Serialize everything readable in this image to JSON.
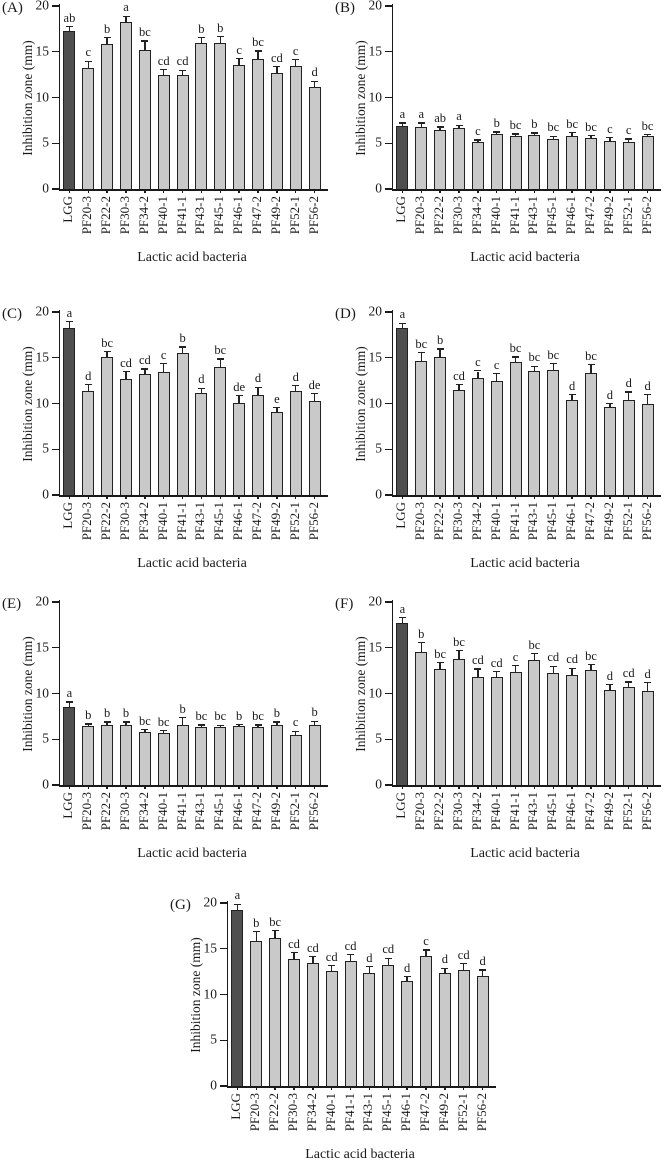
{
  "figure": {
    "y_ticks": [
      0,
      5,
      10,
      15,
      20
    ],
    "colors": {
      "control_bar": "#4f4f4f",
      "bar": "#c9c9c9",
      "bar_border": "#222222",
      "axis": "#1a1a1a",
      "text": "#1a1a1a",
      "background": "#ffffff"
    }
  },
  "chart_data": [
    {
      "panel": "(A)",
      "type": "bar",
      "ylabel": "Inhibition zone (mm)",
      "xlabel": "Lactic acid bacteria",
      "ylim": [
        0,
        20
      ],
      "categories": [
        "LGG",
        "PF20-3",
        "PF22-2",
        "PF30-3",
        "PF34-2",
        "PF40-1",
        "PF41-1",
        "PF43-1",
        "PF45-1",
        "PF46-1",
        "PF47-2",
        "PF49-2",
        "PF52-1",
        "PF56-2"
      ],
      "values": [
        17.3,
        13.2,
        15.8,
        18.3,
        15.2,
        12.5,
        12.5,
        16.0,
        16.0,
        13.6,
        14.2,
        12.7,
        13.4,
        11.2
      ],
      "errors": [
        0.4,
        0.7,
        0.7,
        0.5,
        0.9,
        0.5,
        0.4,
        0.5,
        0.6,
        0.6,
        0.8,
        0.6,
        0.7,
        0.5
      ],
      "sig_letters": [
        "ab",
        "c",
        "b",
        "a",
        "bc",
        "cd",
        "cd",
        "b",
        "b",
        "c",
        "bc",
        "cd",
        "c",
        "d"
      ]
    },
    {
      "panel": "(B)",
      "type": "bar",
      "ylabel": "Inhibition zone (mm)",
      "xlabel": "Lactic acid bacteria",
      "ylim": [
        0,
        20
      ],
      "categories": [
        "LGG",
        "PF20-3",
        "PF22-2",
        "PF30-3",
        "PF34-2",
        "PF40-1",
        "PF41-1",
        "PF43-1",
        "PF45-1",
        "PF46-1",
        "PF47-2",
        "PF49-2",
        "PF52-1",
        "PF56-2"
      ],
      "values": [
        6.9,
        6.8,
        6.5,
        6.7,
        5.1,
        6.0,
        5.8,
        5.9,
        5.5,
        5.8,
        5.6,
        5.2,
        5.1,
        5.8
      ],
      "errors": [
        0.25,
        0.35,
        0.2,
        0.2,
        0.2,
        0.15,
        0.15,
        0.15,
        0.2,
        0.3,
        0.15,
        0.35,
        0.3,
        0.1
      ],
      "sig_letters": [
        "a",
        "a",
        "ab",
        "a",
        "c",
        "b",
        "bc",
        "b",
        "bc",
        "bc",
        "bc",
        "c",
        "c",
        "bc"
      ]
    },
    {
      "panel": "(C)",
      "type": "bar",
      "ylabel": "Inhibition zone (mm)",
      "xlabel": "Lactic acid bacteria",
      "ylim": [
        0,
        20
      ],
      "categories": [
        "LGG",
        "PF20-3",
        "PF22-2",
        "PF30-3",
        "PF34-2",
        "PF40-1",
        "PF41-1",
        "PF43-1",
        "PF45-1",
        "PF46-1",
        "PF47-2",
        "PF49-2",
        "PF52-1",
        "PF56-2"
      ],
      "values": [
        18.3,
        11.4,
        15.1,
        12.7,
        13.2,
        13.4,
        15.5,
        11.1,
        14.0,
        10.1,
        10.9,
        9.1,
        11.4,
        10.3
      ],
      "errors": [
        0.6,
        0.6,
        0.5,
        0.7,
        0.5,
        0.9,
        0.6,
        0.5,
        0.8,
        0.7,
        0.8,
        0.4,
        0.5,
        0.7
      ],
      "sig_letters": [
        "a",
        "d",
        "bc",
        "cd",
        "cd",
        "c",
        "b",
        "d",
        "bc",
        "de",
        "d",
        "e",
        "d",
        "de"
      ]
    },
    {
      "panel": "(D)",
      "type": "bar",
      "ylabel": "Inhibition zone (mm)",
      "xlabel": "Lactic acid bacteria",
      "ylim": [
        0,
        20
      ],
      "categories": [
        "LGG",
        "PF20-3",
        "PF22-2",
        "PF30-3",
        "PF34-2",
        "PF40-1",
        "PF41-1",
        "PF43-1",
        "PF45-1",
        "PF46-1",
        "PF47-2",
        "PF49-2",
        "PF52-1",
        "PF56-2"
      ],
      "values": [
        18.2,
        14.6,
        15.1,
        11.5,
        12.8,
        12.5,
        14.5,
        13.5,
        13.7,
        10.4,
        13.3,
        9.6,
        10.4,
        10.0
      ],
      "errors": [
        0.5,
        0.9,
        0.8,
        0.5,
        0.7,
        0.7,
        0.5,
        0.5,
        0.6,
        0.5,
        0.9,
        0.3,
        0.8,
        0.9
      ],
      "sig_letters": [
        "a",
        "bc",
        "b",
        "cd",
        "c",
        "c",
        "bc",
        "bc",
        "bc",
        "d",
        "bc",
        "d",
        "d",
        "d"
      ]
    },
    {
      "panel": "(E)",
      "type": "bar",
      "ylabel": "Inhibition zone (mm)",
      "xlabel": "Lactic acid bacteria",
      "ylim": [
        0,
        20
      ],
      "categories": [
        "LGG",
        "PF20-3",
        "PF22-2",
        "PF30-3",
        "PF34-2",
        "PF40-1",
        "PF41-1",
        "PF43-1",
        "PF45-1",
        "PF46-1",
        "PF47-2",
        "PF49-2",
        "PF52-1",
        "PF56-2"
      ],
      "values": [
        8.5,
        6.4,
        6.6,
        6.6,
        5.8,
        5.7,
        6.6,
        6.3,
        6.3,
        6.4,
        6.3,
        6.6,
        5.5,
        6.6
      ],
      "errors": [
        0.5,
        0.2,
        0.2,
        0.2,
        0.2,
        0.2,
        0.7,
        0.2,
        0.15,
        0.15,
        0.2,
        0.2,
        0.3,
        0.3
      ],
      "sig_letters": [
        "a",
        "b",
        "b",
        "b",
        "bc",
        "bc",
        "b",
        "bc",
        "bc",
        "b",
        "bc",
        "b",
        "c",
        "b"
      ]
    },
    {
      "panel": "(F)",
      "type": "bar",
      "ylabel": "Inhibition zone (mm)",
      "xlabel": "Lactic acid bacteria",
      "ylim": [
        0,
        20
      ],
      "categories": [
        "LGG",
        "PF20-3",
        "PF22-2",
        "PF30-3",
        "PF34-2",
        "PF40-1",
        "PF41-1",
        "PF43-1",
        "PF45-1",
        "PF46-1",
        "PF47-2",
        "PF49-2",
        "PF52-1",
        "PF56-2"
      ],
      "values": [
        17.7,
        14.5,
        12.7,
        13.8,
        11.8,
        11.8,
        12.4,
        13.7,
        12.2,
        12.0,
        12.6,
        10.4,
        10.7,
        10.3
      ],
      "errors": [
        0.5,
        1.0,
        0.6,
        0.8,
        0.8,
        0.5,
        0.6,
        0.6,
        0.7,
        0.7,
        0.5,
        0.5,
        0.5,
        0.8
      ],
      "sig_letters": [
        "a",
        "b",
        "bc",
        "bc",
        "cd",
        "cd",
        "c",
        "bc",
        "cd",
        "cd",
        "bc",
        "d",
        "cd",
        "d"
      ]
    },
    {
      "panel": "(G)",
      "type": "bar",
      "ylabel": "Inhibition zone (mm)",
      "xlabel": "Lactic acid bacteria",
      "ylim": [
        0,
        20
      ],
      "categories": [
        "LGG",
        "PF20-3",
        "PF22-2",
        "PF30-3",
        "PF34-2",
        "PF40-1",
        "PF41-1",
        "PF43-1",
        "PF45-1",
        "PF46-1",
        "PF47-2",
        "PF49-2",
        "PF52-1",
        "PF56-2"
      ],
      "values": [
        19.2,
        15.9,
        16.2,
        13.9,
        13.4,
        12.6,
        13.7,
        12.4,
        13.2,
        11.5,
        14.2,
        12.4,
        12.7,
        12.0
      ],
      "errors": [
        0.6,
        0.9,
        0.7,
        0.6,
        0.7,
        0.5,
        0.6,
        0.6,
        0.7,
        0.4,
        0.6,
        0.4,
        0.6,
        0.6
      ],
      "sig_letters": [
        "a",
        "b",
        "bc",
        "cd",
        "cd",
        "cd",
        "cd",
        "d",
        "cd",
        "d",
        "c",
        "d",
        "cd",
        "d"
      ]
    }
  ]
}
